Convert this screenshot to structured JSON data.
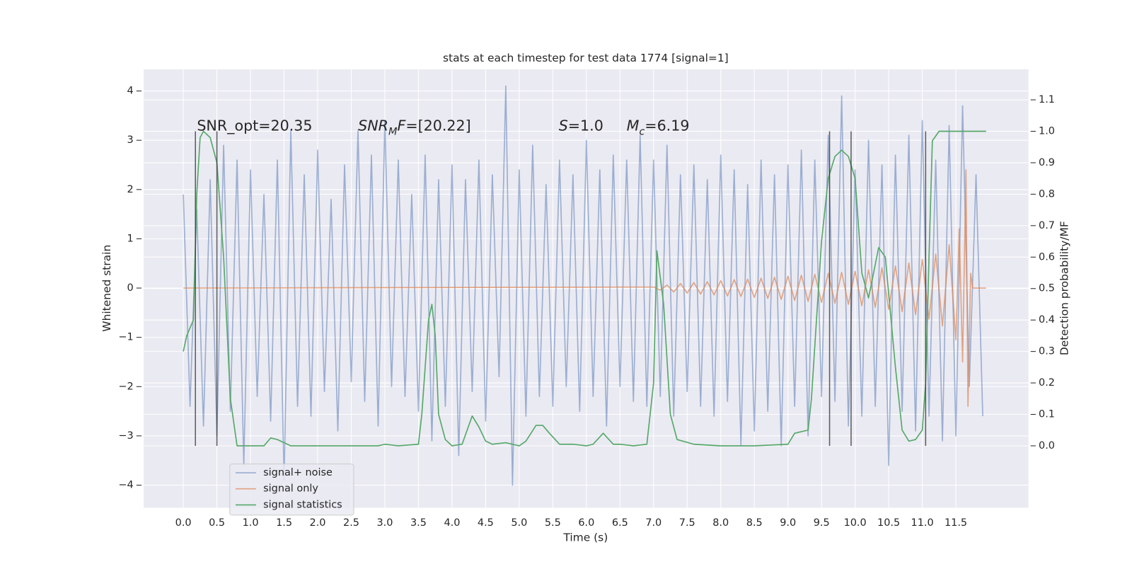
{
  "chart_data": {
    "type": "line",
    "title": "stats at each timestep for test data 1774 [signal=1]",
    "x_label": "Time (s)",
    "y_label": "Whitened strain",
    "y2_label": "Detection probability/MF",
    "xlim": [
      -0.59,
      12.58
    ],
    "ylim": [
      -4.46,
      4.44
    ],
    "y2lim": [
      -0.197,
      1.197
    ],
    "xticks": [
      {
        "value": 0,
        "label": "0.0"
      },
      0.5,
      {
        "value": 1,
        "label": "1.0"
      },
      1.5,
      {
        "value": 2,
        "label": "2.0"
      },
      2.5,
      {
        "value": 3,
        "label": "3.0"
      },
      3.5,
      {
        "value": 4,
        "label": "4.0"
      },
      4.5,
      {
        "value": 5,
        "label": "5.0"
      },
      5.5,
      {
        "value": 6,
        "label": "6.0"
      },
      6.5,
      {
        "value": 7,
        "label": "7.0"
      },
      7.5,
      {
        "value": 8,
        "label": "8.0"
      },
      8.5,
      {
        "value": 9,
        "label": "9.0"
      },
      9.5,
      {
        "value": 10,
        "label": "10.0"
      },
      10.5,
      {
        "value": 11,
        "label": "11.0"
      },
      11.5
    ],
    "yticks": [
      {
        "value": -4,
        "label": "−4"
      },
      {
        "value": -3,
        "label": "−3"
      },
      {
        "value": -2,
        "label": "−2"
      },
      {
        "value": -1,
        "label": "−1"
      },
      0,
      1,
      2,
      3,
      4
    ],
    "y2ticks": [
      {
        "value": 0,
        "label": "0.0"
      },
      0.1,
      0.2,
      0.3,
      0.4,
      0.5,
      0.6,
      0.7,
      0.8,
      0.9,
      {
        "value": 1,
        "label": "1.0"
      },
      1.1
    ],
    "grid": true,
    "legend": "lower left",
    "series": [
      {
        "name": "signal+ noise",
        "color": "#4c72b0",
        "opacity": 0.5,
        "x": [
          0,
          0.1,
          0.2,
          0.3,
          0.4,
          0.5,
          0.6,
          0.7,
          0.8,
          0.9,
          1,
          1.1,
          1.2,
          1.3,
          1.4,
          1.5,
          1.6,
          1.7,
          1.8,
          1.9,
          2,
          2.1,
          2.2,
          2.3,
          2.4,
          2.5,
          2.6,
          2.7,
          2.8,
          2.9,
          3,
          3.1,
          3.2,
          3.3,
          3.4,
          3.5,
          3.6,
          3.7,
          3.8,
          3.9,
          4,
          4.1,
          4.2,
          4.3,
          4.4,
          4.5,
          4.6,
          4.7,
          4.8,
          4.9,
          5,
          5.1,
          5.2,
          5.3,
          5.4,
          5.5,
          5.6,
          5.7,
          5.8,
          5.9,
          6,
          6.1,
          6.2,
          6.3,
          6.4,
          6.5,
          6.6,
          6.7,
          6.8,
          6.9,
          7,
          7.1,
          7.2,
          7.3,
          7.4,
          7.5,
          7.6,
          7.7,
          7.8,
          7.9,
          8,
          8.1,
          8.2,
          8.3,
          8.4,
          8.5,
          8.6,
          8.7,
          8.8,
          8.9,
          9,
          9.1,
          9.2,
          9.3,
          9.4,
          9.5,
          9.6,
          9.7,
          9.8,
          9.9,
          10,
          10.1,
          10.2,
          10.3,
          10.4,
          10.5,
          10.6,
          10.7,
          10.8,
          10.9,
          11,
          11.1,
          11.2,
          11.3,
          11.4,
          11.5,
          11.6,
          11.7,
          11.8,
          11.9
        ],
        "values": [
          1.9,
          -2.4,
          1.6,
          -2.8,
          2.2,
          -3.0,
          2.9,
          -2.5,
          2.6,
          -3.6,
          2.4,
          -2.2,
          1.9,
          -2.7,
          2.6,
          -3.9,
          3.2,
          -2.4,
          2.3,
          -2.6,
          2.8,
          -2.1,
          1.8,
          -2.9,
          2.5,
          -1.9,
          3.2,
          -2.3,
          2.7,
          -2.8,
          3.4,
          -2.0,
          2.6,
          -2.2,
          1.9,
          -2.5,
          2.7,
          -3.1,
          2.2,
          -2.4,
          2.5,
          -3.4,
          2.2,
          -2.1,
          2.6,
          -2.7,
          2.3,
          -1.8,
          4.1,
          -4.0,
          2.4,
          -2.6,
          2.9,
          -2.2,
          2.1,
          -2.4,
          2.6,
          -2.0,
          2.3,
          -2.5,
          3.0,
          -2.2,
          2.4,
          -2.8,
          2.7,
          -2.0,
          2.6,
          -2.3,
          3.1,
          -2.4,
          2.6,
          -2.2,
          2.9,
          -2.6,
          2.3,
          -2.1,
          2.5,
          -2.4,
          2.2,
          -2.6,
          2.7,
          -2.3,
          2.4,
          -3.2,
          2.1,
          -2.9,
          2.6,
          -2.5,
          2.3,
          -3.2,
          2.5,
          -2.4,
          2.8,
          -3.0,
          2.6,
          -2.2,
          3.1,
          -2.3,
          3.9,
          -2.8,
          2.4,
          -2.6,
          3.0,
          -2.4,
          2.5,
          -3.6,
          2.7,
          -2.5,
          3.1,
          -2.9,
          3.4,
          -2.6,
          2.6,
          -3.1,
          3.3,
          -3.0,
          3.7,
          -2.0,
          2.3,
          -2.6
        ]
      },
      {
        "name": "signal only",
        "color": "#dd8452",
        "opacity": 0.7,
        "x": [
          0,
          7,
          7.1,
          7.2,
          7.3,
          7.4,
          7.5,
          7.6,
          7.7,
          7.8,
          7.9,
          8,
          8.1,
          8.2,
          8.3,
          8.4,
          8.5,
          8.6,
          8.7,
          8.8,
          8.9,
          9,
          9.1,
          9.2,
          9.3,
          9.4,
          9.5,
          9.6,
          9.7,
          9.8,
          9.9,
          10,
          10.1,
          10.2,
          10.3,
          10.4,
          10.5,
          10.6,
          10.7,
          10.8,
          10.9,
          11,
          11.1,
          11.2,
          11.3,
          11.4,
          11.5,
          11.55,
          11.6,
          11.65,
          11.68,
          11.72,
          11.75,
          11.95
        ],
        "values": [
          0,
          0.02,
          -0.04,
          0.06,
          -0.08,
          0.09,
          -0.1,
          0.11,
          -0.12,
          0.13,
          -0.14,
          0.15,
          -0.16,
          0.17,
          -0.17,
          0.18,
          -0.19,
          0.2,
          -0.21,
          0.22,
          -0.23,
          0.24,
          -0.25,
          0.26,
          -0.27,
          0.28,
          -0.29,
          0.3,
          -0.31,
          0.32,
          -0.33,
          0.34,
          -0.36,
          0.37,
          -0.39,
          0.41,
          -0.43,
          0.45,
          -0.48,
          0.51,
          -0.54,
          0.58,
          -0.63,
          0.69,
          -0.77,
          0.88,
          -1.05,
          1.2,
          -1.5,
          2.4,
          -2.4,
          0.3,
          0,
          0
        ]
      },
      {
        "name": "signal statistics",
        "color": "#55a868",
        "axis": "y2",
        "opacity": 1,
        "x": [
          0,
          0.05,
          0.15,
          0.2,
          0.25,
          0.3,
          0.4,
          0.5,
          0.6,
          0.7,
          0.8,
          0.9,
          1,
          1.2,
          1.3,
          1.4,
          1.6,
          2,
          2.5,
          2.9,
          3,
          3.2,
          3.5,
          3.55,
          3.65,
          3.7,
          3.75,
          3.8,
          3.9,
          4,
          4.15,
          4.3,
          4.4,
          4.5,
          4.6,
          4.8,
          5,
          5.1,
          5.25,
          5.35,
          5.45,
          5.6,
          5.8,
          6,
          6.1,
          6.25,
          6.4,
          6.5,
          6.7,
          6.9,
          7,
          7.05,
          7.15,
          7.25,
          7.35,
          7.6,
          8,
          8.5,
          9,
          9.1,
          9.2,
          9.3,
          9.35,
          9.5,
          9.6,
          9.7,
          9.8,
          9.9,
          10,
          10.1,
          10.2,
          10.35,
          10.45,
          10.6,
          10.7,
          10.8,
          10.9,
          11,
          11.05,
          11.1,
          11.15,
          11.25,
          11.5,
          11.95
        ],
        "values": [
          0.3,
          0.35,
          0.4,
          0.8,
          0.98,
          1.0,
          0.98,
          0.9,
          0.6,
          0.15,
          0.0,
          0.0,
          0.0,
          0.0,
          0.025,
          0.02,
          0.0,
          0.0,
          0.0,
          0.0,
          0.005,
          0.0,
          0.005,
          0.1,
          0.4,
          0.45,
          0.35,
          0.1,
          0.02,
          0.0,
          0.005,
          0.095,
          0.06,
          0.015,
          0.005,
          0.01,
          0.0,
          0.015,
          0.065,
          0.065,
          0.04,
          0.005,
          0.005,
          0.0,
          0.005,
          0.04,
          0.005,
          0.005,
          0.0,
          0.005,
          0.2,
          0.62,
          0.45,
          0.1,
          0.02,
          0.005,
          0.0,
          0.0,
          0.005,
          0.04,
          0.045,
          0.05,
          0.15,
          0.65,
          0.85,
          0.92,
          0.94,
          0.92,
          0.85,
          0.55,
          0.47,
          0.63,
          0.6,
          0.25,
          0.05,
          0.015,
          0.02,
          0.05,
          0.2,
          0.6,
          0.97,
          1.0,
          1.0,
          1.0
        ]
      }
    ],
    "vlines": [
      0.18,
      0.5,
      9.62,
      9.94,
      11.05
    ],
    "vline_span": [
      0,
      1
    ],
    "vline_color": "#3a3a3a",
    "annotations": [
      [
        {
          "text": "SNR_opt=20.35"
        }
      ],
      [
        {
          "text": "SNR",
          "italic": true
        },
        {
          "text": "M",
          "italic": true,
          "sub": true
        },
        {
          "text": "F",
          "italic": true
        },
        {
          "text": "=[20.22]"
        }
      ],
      [
        {
          "text": "S",
          "italic": true
        },
        {
          "text": "=1.0"
        }
      ],
      [
        {
          "text": "M",
          "italic": true
        },
        {
          "text": "c",
          "italic": true,
          "sub": true
        },
        {
          "text": "=6.19"
        }
      ]
    ]
  }
}
